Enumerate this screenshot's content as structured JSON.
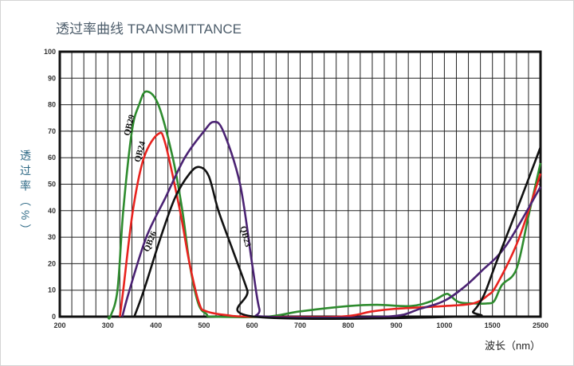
{
  "chart_data": {
    "type": "line",
    "title": "透过率曲线 TRANSMITTANCE",
    "xlabel": "波长（nm）",
    "ylabel": "透过率（%）",
    "ylabel_chars": [
      "透",
      "过",
      "率",
      "(",
      "%",
      ")"
    ],
    "ylim": [
      0,
      100
    ],
    "x_ticks": [
      200,
      300,
      400,
      500,
      600,
      700,
      800,
      900,
      1000,
      1500,
      2500
    ],
    "y_ticks": [
      0,
      10,
      20,
      30,
      40,
      50,
      60,
      70,
      80,
      90,
      100
    ],
    "x_scale": "piecewise-linear (200–1000 step 100, 1000–1500, 1500–2500)",
    "grid": true,
    "series": [
      {
        "name": "QB29",
        "color": "#2e8b2e",
        "points": [
          [
            300,
            0
          ],
          [
            305,
            0
          ],
          [
            320,
            10
          ],
          [
            332,
            40
          ],
          [
            350,
            70
          ],
          [
            365,
            80
          ],
          [
            380,
            85
          ],
          [
            405,
            80
          ],
          [
            435,
            60
          ],
          [
            455,
            40
          ],
          [
            470,
            20
          ],
          [
            488,
            5
          ],
          [
            505,
            1
          ],
          [
            520,
            0
          ],
          [
            630,
            0
          ],
          [
            700,
            2
          ],
          [
            800,
            4
          ],
          [
            860,
            4.5
          ],
          [
            930,
            4
          ],
          [
            975,
            6
          ],
          [
            1010,
            8.5
          ],
          [
            1060,
            8
          ],
          [
            1150,
            5.5
          ],
          [
            1300,
            5
          ],
          [
            1450,
            5
          ],
          [
            1540,
            6
          ],
          [
            1700,
            12
          ],
          [
            2000,
            18
          ],
          [
            2250,
            38
          ],
          [
            2500,
            58
          ]
        ]
      },
      {
        "name": "QB24",
        "color": "#e8231f",
        "points": [
          [
            325,
            0
          ],
          [
            332,
            10
          ],
          [
            352,
            40
          ],
          [
            375,
            60
          ],
          [
            405,
            69
          ],
          [
            420,
            65
          ],
          [
            450,
            40
          ],
          [
            470,
            20
          ],
          [
            490,
            5
          ],
          [
            505,
            2
          ],
          [
            550,
            0.5
          ],
          [
            600,
            0
          ],
          [
            780,
            0
          ],
          [
            850,
            2
          ],
          [
            900,
            3
          ],
          [
            1000,
            4
          ],
          [
            1300,
            5
          ],
          [
            1450,
            8
          ],
          [
            1590,
            12
          ],
          [
            2040,
            29
          ],
          [
            2500,
            54
          ]
        ]
      },
      {
        "name": "QB26",
        "color": "#4b2373",
        "points": [
          [
            330,
            0
          ],
          [
            345,
            10
          ],
          [
            380,
            30
          ],
          [
            420,
            45
          ],
          [
            460,
            60
          ],
          [
            500,
            70
          ],
          [
            520,
            73.5
          ],
          [
            540,
            70
          ],
          [
            575,
            50
          ],
          [
            600,
            20
          ],
          [
            615,
            3
          ],
          [
            630,
            0
          ],
          [
            877,
            0
          ],
          [
            950,
            3
          ],
          [
            1000,
            6
          ],
          [
            1200,
            11
          ],
          [
            1380,
            17
          ],
          [
            1790,
            27
          ],
          [
            2500,
            49
          ]
        ]
      },
      {
        "name": "QB23",
        "color": "#111111",
        "points": [
          [
            355,
            0
          ],
          [
            375,
            10
          ],
          [
            410,
            30
          ],
          [
            440,
            45
          ],
          [
            470,
            54
          ],
          [
            490,
            56.5
          ],
          [
            510,
            53
          ],
          [
            530,
            40
          ],
          [
            560,
            25
          ],
          [
            590,
            10
          ],
          [
            605,
            0
          ],
          [
            1200,
            0
          ],
          [
            1300,
            2
          ],
          [
            1410,
            8
          ],
          [
            1570,
            20
          ],
          [
            2000,
            40
          ],
          [
            2500,
            64
          ]
        ]
      }
    ],
    "curve_labels": [
      "QB29",
      "QB24",
      "QB26",
      "QB23"
    ]
  }
}
